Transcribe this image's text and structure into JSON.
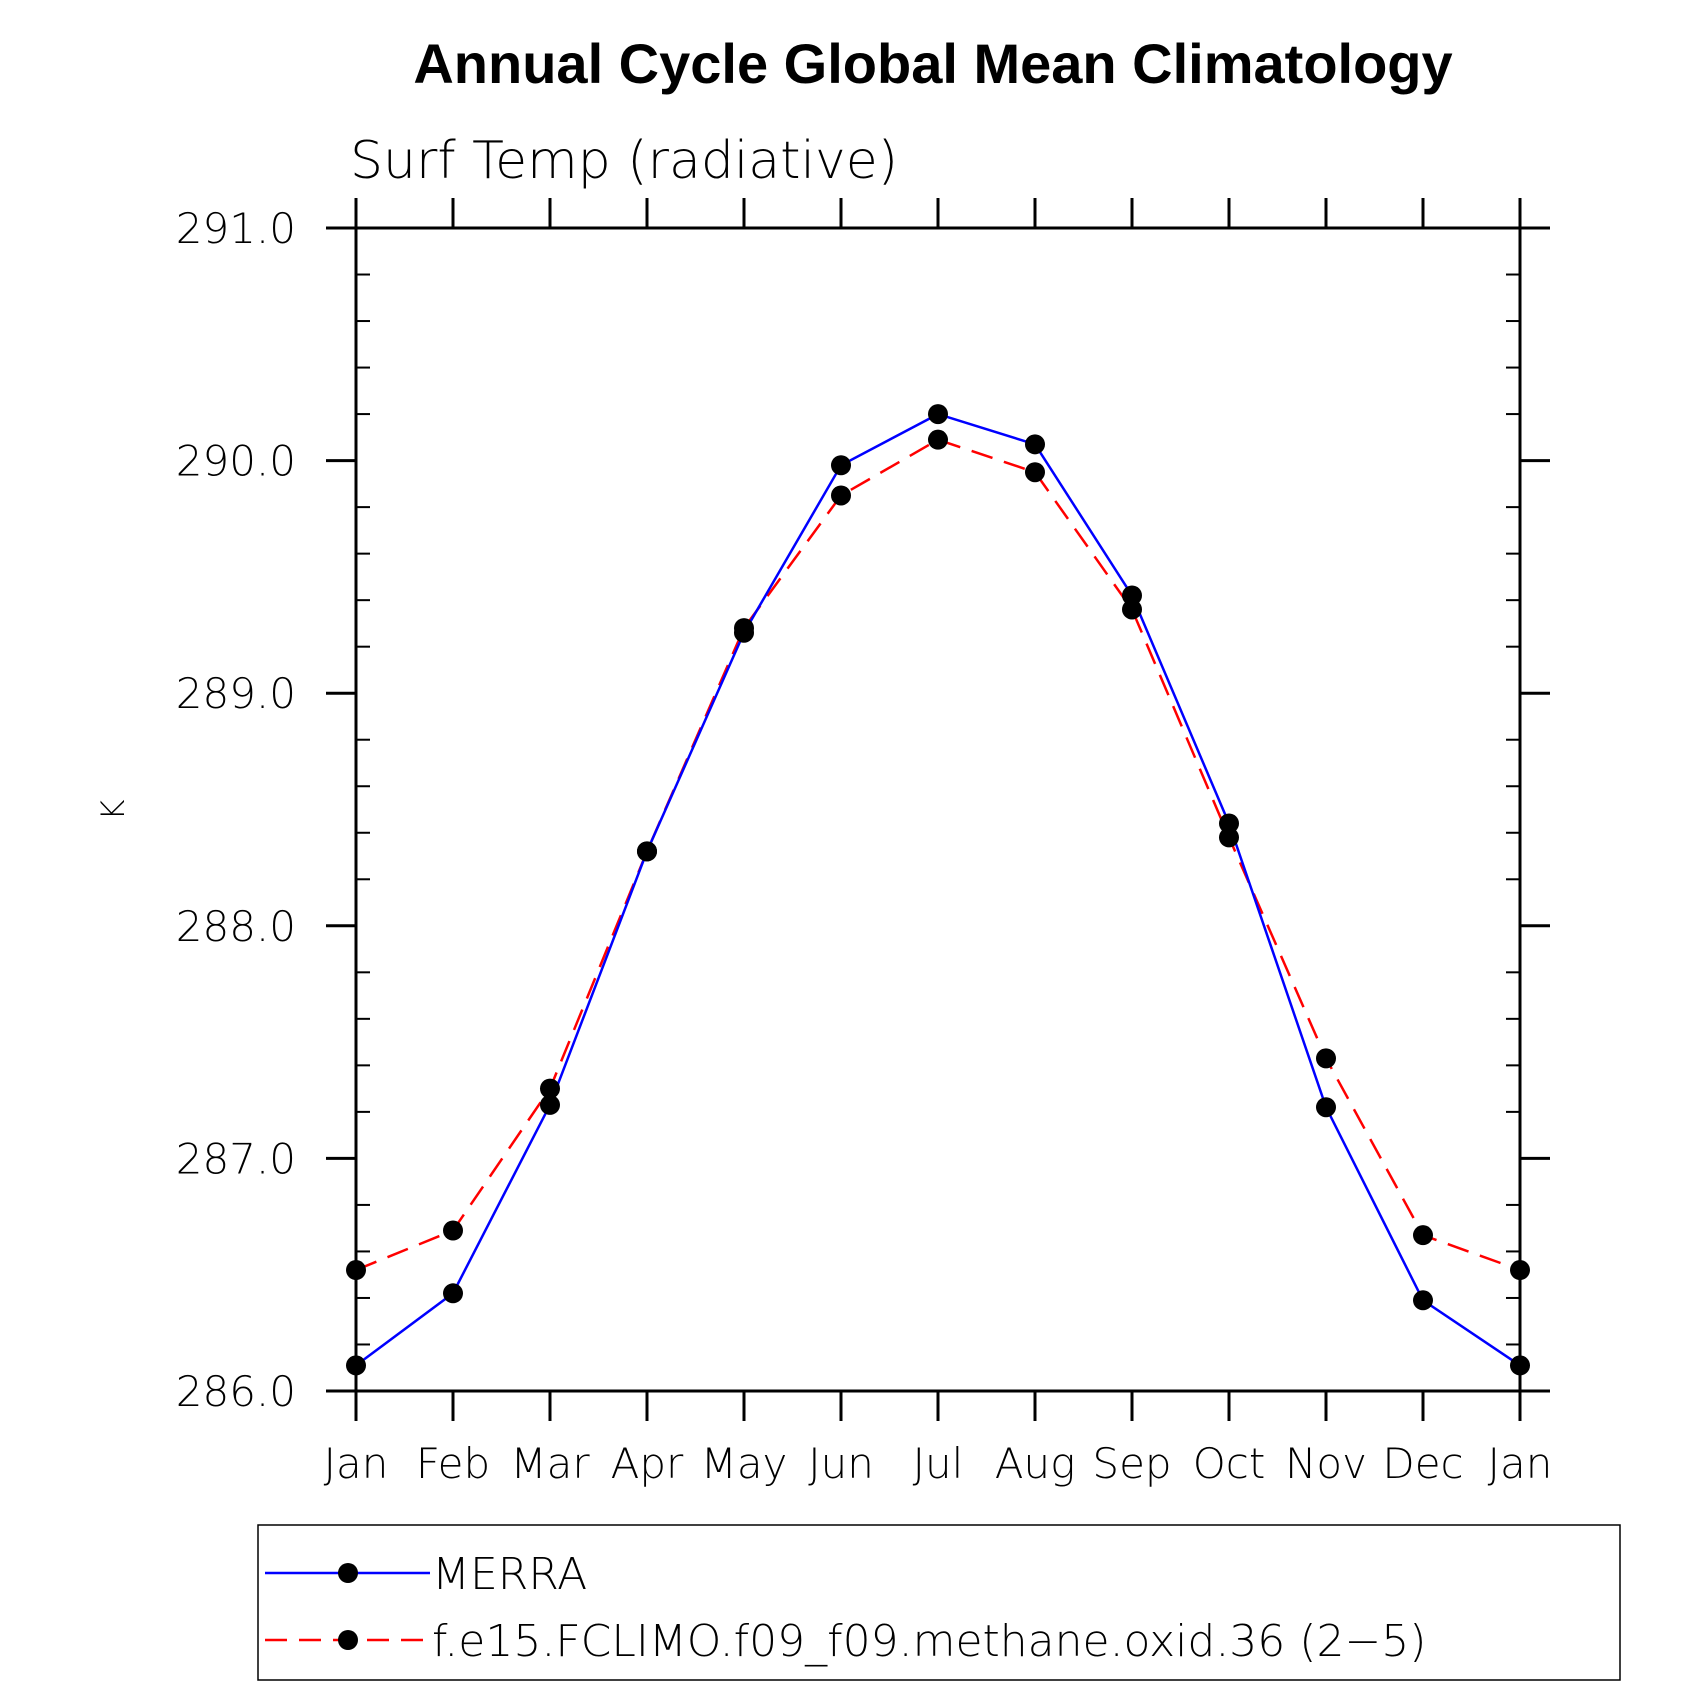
{
  "chart_data": {
    "type": "line",
    "title": "Annual Cycle Global Mean Climatology",
    "subtitle": "Surf Temp (radiative)",
    "ylabel": "K",
    "xlabel": "",
    "categories": [
      "Jan",
      "Feb",
      "Mar",
      "Apr",
      "May",
      "Jun",
      "Jul",
      "Aug",
      "Sep",
      "Oct",
      "Nov",
      "Dec",
      "Jan"
    ],
    "ylim": [
      286.0,
      291.0
    ],
    "yticks": [
      "286.0",
      "287.0",
      "288.0",
      "289.0",
      "290.0",
      "291.0"
    ],
    "series": [
      {
        "name": "MERRA",
        "color": "#0000ff",
        "style": "solid",
        "values": [
          286.11,
          286.42,
          287.23,
          288.32,
          289.26,
          289.98,
          290.2,
          290.07,
          289.42,
          288.44,
          287.22,
          286.39,
          286.11
        ]
      },
      {
        "name": "f.e15.FCLIMO.f09_f09.methane.oxid.36 (2−5)",
        "color": "#ff0000",
        "style": "dashed",
        "values": [
          286.52,
          286.69,
          287.3,
          288.32,
          289.28,
          289.85,
          290.09,
          289.95,
          289.36,
          288.38,
          287.43,
          286.67,
          286.52
        ]
      }
    ],
    "legend_position": "bottom"
  }
}
